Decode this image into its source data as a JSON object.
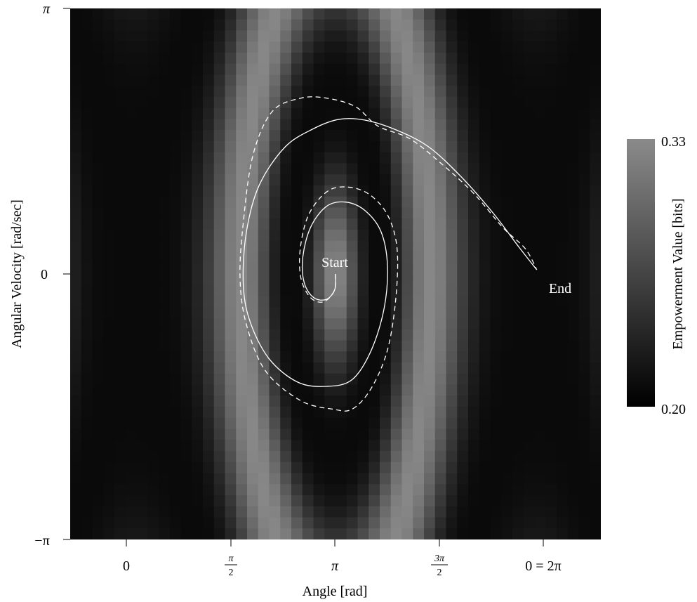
{
  "chart_data": {
    "type": "heatmap",
    "title": "",
    "xlabel": "Angle [rad]",
    "ylabel": "Angular Velocity [rad/sec]",
    "xlim": [
      -1.0,
      7.28
    ],
    "ylim": [
      -3.1416,
      3.1416
    ],
    "x_ticks": [
      {
        "value": 0,
        "label": "0"
      },
      {
        "value": 1.5708,
        "label": "π/2",
        "num": "π",
        "den": "2"
      },
      {
        "value": 3.1416,
        "label": "π"
      },
      {
        "value": 4.7124,
        "label": "3π/2",
        "num": "3π",
        "den": "2"
      },
      {
        "value": 6.2832,
        "label": "0 = 2π"
      }
    ],
    "y_ticks": [
      {
        "value": 3.1416,
        "label": "π"
      },
      {
        "value": 0,
        "label": "0"
      },
      {
        "value": -3.1416,
        "label": "−π"
      }
    ],
    "grid": false,
    "colorbar": {
      "label": "Empowerment Value [bits]",
      "min": 0.2,
      "max": 0.33,
      "min_label": "0.20",
      "max_label": "0.33",
      "colormap": "gray"
    },
    "annotations": [
      {
        "text": "Start",
        "x": 3.1416,
        "y": 0.0
      },
      {
        "text": "End",
        "x": 6.2832,
        "y": 0.0
      }
    ],
    "series": [
      {
        "style": "solid",
        "points": [
          [
            3.14,
            0.0
          ],
          [
            3.13,
            -0.18
          ],
          [
            3.0,
            -0.3
          ],
          [
            2.8,
            -0.28
          ],
          [
            2.65,
            -0.1
          ],
          [
            2.63,
            0.2
          ],
          [
            2.75,
            0.55
          ],
          [
            3.0,
            0.8
          ],
          [
            3.3,
            0.85
          ],
          [
            3.6,
            0.75
          ],
          [
            3.85,
            0.5
          ],
          [
            3.95,
            0.1
          ],
          [
            3.9,
            -0.4
          ],
          [
            3.7,
            -0.9
          ],
          [
            3.4,
            -1.25
          ],
          [
            3.0,
            -1.33
          ],
          [
            2.55,
            -1.28
          ],
          [
            2.1,
            -1.0
          ],
          [
            1.8,
            -0.55
          ],
          [
            1.7,
            -0.1
          ],
          [
            1.75,
            0.5
          ],
          [
            1.95,
            1.05
          ],
          [
            2.35,
            1.5
          ],
          [
            2.8,
            1.72
          ],
          [
            3.2,
            1.83
          ],
          [
            3.6,
            1.82
          ],
          [
            4.1,
            1.7
          ],
          [
            4.6,
            1.5
          ],
          [
            5.1,
            1.15
          ],
          [
            5.6,
            0.72
          ],
          [
            6.0,
            0.32
          ],
          [
            6.28,
            0.05
          ]
        ]
      },
      {
        "style": "dashed",
        "points": [
          [
            3.14,
            0.0
          ],
          [
            3.12,
            -0.2
          ],
          [
            2.95,
            -0.33
          ],
          [
            2.75,
            -0.28
          ],
          [
            2.6,
            -0.05
          ],
          [
            2.59,
            0.3
          ],
          [
            2.72,
            0.7
          ],
          [
            3.0,
            0.97
          ],
          [
            3.3,
            1.03
          ],
          [
            3.65,
            0.95
          ],
          [
            3.95,
            0.7
          ],
          [
            4.1,
            0.3
          ],
          [
            4.08,
            -0.3
          ],
          [
            3.95,
            -0.9
          ],
          [
            3.7,
            -1.35
          ],
          [
            3.4,
            -1.6
          ],
          [
            3.1,
            -1.6
          ],
          [
            2.6,
            -1.5
          ],
          [
            2.05,
            -1.15
          ],
          [
            1.75,
            -0.6
          ],
          [
            1.65,
            -0.05
          ],
          [
            1.7,
            0.6
          ],
          [
            1.85,
            1.4
          ],
          [
            2.15,
            1.92
          ],
          [
            2.6,
            2.08
          ],
          [
            3.0,
            2.08
          ],
          [
            3.45,
            1.98
          ],
          [
            3.8,
            1.75
          ],
          [
            4.3,
            1.6
          ],
          [
            4.8,
            1.3
          ],
          [
            5.3,
            0.95
          ],
          [
            5.75,
            0.55
          ],
          [
            6.1,
            0.3
          ],
          [
            6.28,
            0.05
          ]
        ]
      }
    ]
  }
}
